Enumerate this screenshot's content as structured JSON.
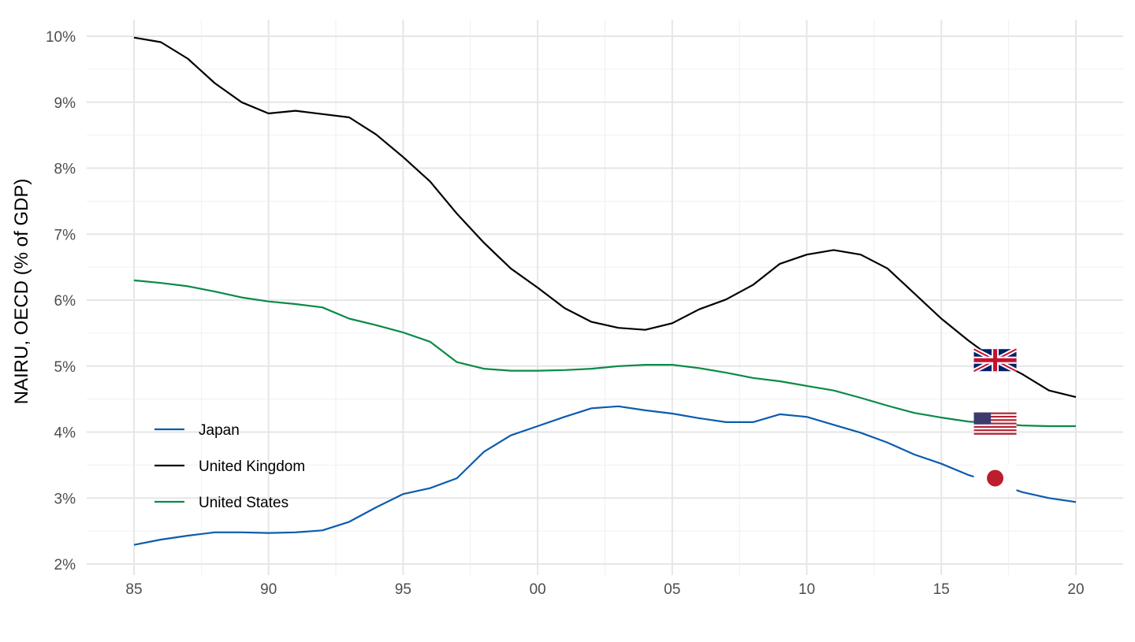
{
  "chart_data": {
    "type": "line",
    "title": "",
    "xlabel": "",
    "ylabel": "NAIRU, OECD (% of GDP)",
    "x": [
      1985,
      1986,
      1987,
      1988,
      1989,
      1990,
      1991,
      1992,
      1993,
      1994,
      1995,
      1996,
      1997,
      1998,
      1999,
      2000,
      2001,
      2002,
      2003,
      2004,
      2005,
      2006,
      2007,
      2008,
      2009,
      2010,
      2011,
      2012,
      2013,
      2014,
      2015,
      2016,
      2017,
      2018,
      2019,
      2020
    ],
    "xlim": [
      1983.8,
      2021.2
    ],
    "ylim": [
      2,
      10
    ],
    "xticks": [
      1985,
      1990,
      1995,
      2000,
      2005,
      2010,
      2015,
      2020
    ],
    "xtick_labels": [
      "85",
      "90",
      "95",
      "00",
      "05",
      "10",
      "15",
      "20"
    ],
    "yticks": [
      2,
      3,
      4,
      5,
      6,
      7,
      8,
      9,
      10
    ],
    "ytick_labels": [
      "2%",
      "3%",
      "4%",
      "5%",
      "6%",
      "7%",
      "8%",
      "9%",
      "10%"
    ],
    "grid": true,
    "legend_position": "bottom-left",
    "series": [
      {
        "name": "Japan",
        "color": "#0b5cad",
        "flag": "japan-flag",
        "values": [
          2.29,
          2.37,
          2.43,
          2.48,
          2.48,
          2.47,
          2.48,
          2.51,
          2.64,
          2.86,
          3.06,
          3.15,
          3.3,
          3.7,
          3.95,
          4.09,
          4.23,
          4.36,
          4.39,
          4.33,
          4.28,
          4.21,
          4.15,
          4.15,
          4.27,
          4.23,
          4.11,
          3.99,
          3.84,
          3.66,
          3.52,
          3.35,
          3.23,
          3.09,
          3.0,
          2.94
        ]
      },
      {
        "name": "United Kingdom",
        "color": "#000000",
        "flag": "uk-flag",
        "values": [
          9.98,
          9.91,
          9.66,
          9.29,
          9.0,
          8.83,
          8.87,
          8.82,
          8.77,
          8.51,
          8.17,
          7.8,
          7.31,
          6.87,
          6.48,
          6.19,
          5.88,
          5.67,
          5.58,
          5.55,
          5.65,
          5.86,
          6.01,
          6.23,
          6.55,
          6.69,
          6.76,
          6.69,
          6.48,
          6.1,
          5.72,
          5.39,
          5.09,
          4.88,
          4.63,
          4.53
        ]
      },
      {
        "name": "United States",
        "color": "#0a8a45",
        "flag": "us-flag",
        "values": [
          6.3,
          6.26,
          6.21,
          6.13,
          6.04,
          5.98,
          5.94,
          5.89,
          5.72,
          5.62,
          5.51,
          5.37,
          5.06,
          4.96,
          4.93,
          4.93,
          4.94,
          4.96,
          5.0,
          5.02,
          5.02,
          4.97,
          4.9,
          4.82,
          4.77,
          4.7,
          4.63,
          4.52,
          4.4,
          4.29,
          4.22,
          4.16,
          4.13,
          4.1,
          4.09,
          4.09
        ]
      }
    ],
    "flag_year": 2017
  }
}
